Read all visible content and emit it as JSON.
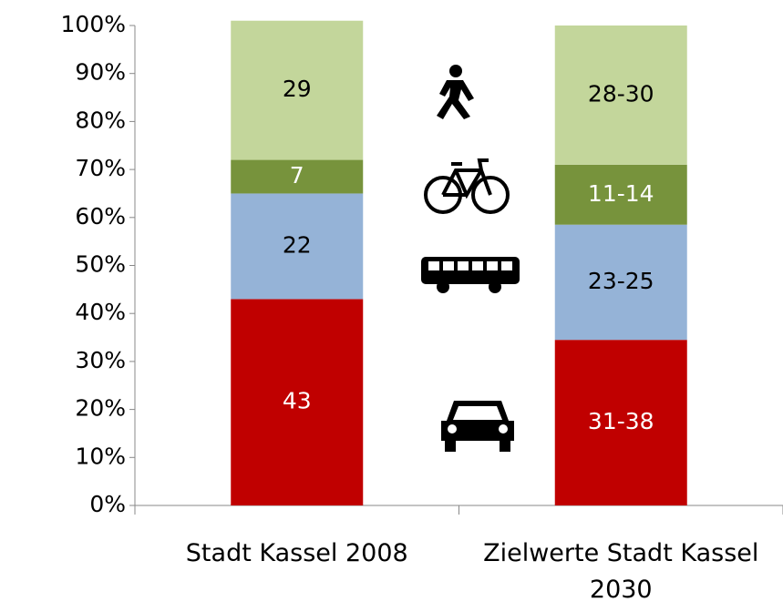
{
  "chart_data": {
    "type": "stacked_bar",
    "categories": [
      "Stadt Kassel 2008",
      "Zielwerte Stadt Kassel 2030"
    ],
    "series": [
      {
        "color": "#c00000",
        "values": [
          43,
          34.5
        ],
        "value_labels": [
          "43",
          "31-38"
        ]
      },
      {
        "color": "#95b3d7",
        "values": [
          22,
          24
        ],
        "value_labels": [
          "22",
          "23-25"
        ]
      },
      {
        "color": "#77933c",
        "values": [
          7,
          12.5
        ],
        "value_labels": [
          "7",
          "11-14"
        ]
      },
      {
        "color": "#c3d69b",
        "values": [
          29,
          29
        ],
        "value_labels": [
          "29",
          "28-30"
        ]
      }
    ],
    "ylim": [
      0,
      100
    ],
    "yticks": [
      {
        "value": 0,
        "label": "0%"
      },
      {
        "value": 10,
        "label": "10%"
      },
      {
        "value": 20,
        "label": "20%"
      },
      {
        "value": 30,
        "label": "30%"
      },
      {
        "value": 40,
        "label": "40%"
      },
      {
        "value": 50,
        "label": "50%"
      },
      {
        "value": 60,
        "label": "60%"
      },
      {
        "value": 70,
        "label": "70%"
      },
      {
        "value": 80,
        "label": "80%"
      },
      {
        "value": 90,
        "label": "90%"
      },
      {
        "value": 100,
        "label": "100%"
      }
    ],
    "grid": false
  }
}
